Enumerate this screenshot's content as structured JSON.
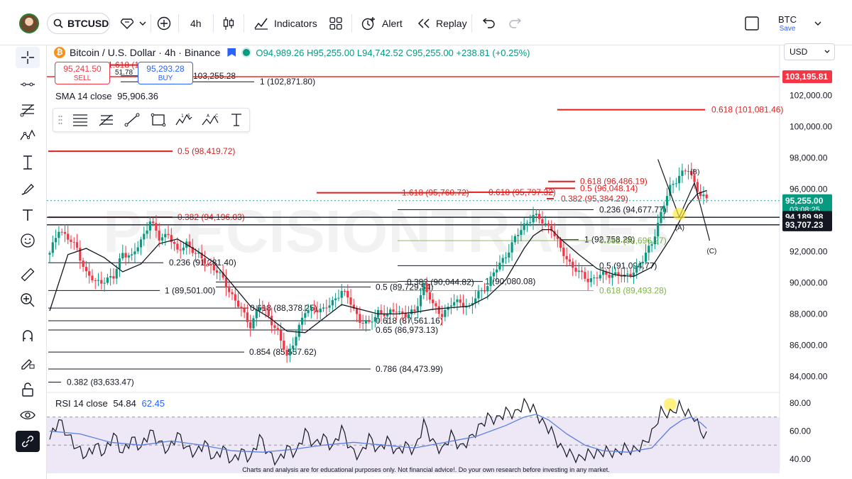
{
  "header": {
    "symbol": "BTCUSD",
    "interval": "4h",
    "indicators_label": "Indicators",
    "alert_label": "Alert",
    "replay_label": "Replay",
    "layout_name": "BTC",
    "save_label": "Save"
  },
  "legend": {
    "title": "Bitcoin / U.S. Dollar · 4h · Binance",
    "open": "O94,989.26",
    "high": "H95,255.00",
    "low": "L94,742.52",
    "close": "C95,255.00",
    "change": "+238.81 (+0.25%)"
  },
  "trade": {
    "sell_price": "95,241.50",
    "sell_label": "SELL",
    "spread": "51.78",
    "buy_price": "95,293.28",
    "buy_label": "BUY"
  },
  "sma_label": "SMA 14 close",
  "sma_value": "95,906.36",
  "rsi_label": "RSI 14 close",
  "rsi_value": "54.84",
  "rsi_ma_value": "62.45",
  "currency": "USD",
  "disclaimer": "Charts and analysis are for educational purposes only. Not financial advice!. Do your own research before investing in any market.",
  "watermark": "PRECISIONTRADE3",
  "colors": {
    "up": "#089981",
    "down": "#f23645",
    "red_level": "#e01e1e",
    "green_level": "#8bc34a",
    "sma": "#131722",
    "rsi": "#131722",
    "rsi_ma": "#5b7fe0",
    "rsi_band": "#ede7f6",
    "accent": "#2962ff"
  },
  "chart_data": {
    "type": "candlestick",
    "title": "Bitcoin / U.S. Dollar · 4h · Binance",
    "price_axis": {
      "ylim": [
        83200,
        104200
      ],
      "ticks": [
        "102,000.00",
        "100,000.00",
        "98,000.00",
        "96,000.00",
        "94,000.00",
        "92,000.00",
        "90,000.00",
        "88,000.00",
        "86,000.00",
        "84,000.00"
      ],
      "tick_values": [
        102000,
        100000,
        98000,
        96000,
        94000,
        92000,
        90000,
        88000,
        86000,
        84000
      ]
    },
    "price_labels": [
      {
        "text": "103,195.81",
        "value": 103195.81,
        "style": "red"
      },
      {
        "text": "95,255.00",
        "sub": "03:08:25",
        "value": 95255,
        "style": "green"
      },
      {
        "text": "94,189.98",
        "value": 94189.98,
        "style": "black"
      },
      {
        "text": "93,707.23",
        "value": 93707.23,
        "style": "black"
      }
    ],
    "red_levels": [
      {
        "label": "0.5 (98,419.72)",
        "value": 98419.72
      },
      {
        "label": "0.382 (94,196.03)",
        "value": 94196.03
      },
      {
        "label": "0.618 (101,081.46)",
        "value": 101081.46
      },
      {
        "label": "1.618 (95,760.72)",
        "value": 95760.72
      },
      {
        "label": "0.618 (95,797.32)",
        "value": 95797.32
      },
      {
        "label": "0.618 (96,486.19)",
        "value": 96486.19
      },
      {
        "label": "0.5 (96,048.14)",
        "value": 96048.14
      },
      {
        "label": "0.382 (95,384.29)",
        "value": 95384.29
      },
      {
        "label": "1.618 (103,946.81)",
        "value": 103946.81
      }
    ],
    "black_levels": [
      {
        "label": "1 (102,871.80)",
        "value": 102871.8
      },
      {
        "label": "103,255.28",
        "value": 103255.28
      },
      {
        "label": "0.236 (91,281.40)",
        "value": 91281.4
      },
      {
        "label": "1 (89,501.00)",
        "value": 89501
      },
      {
        "label": "0.5 (89,729.54)",
        "value": 89729.54
      },
      {
        "label": "0.382 (90,044.82)",
        "value": 90044.82
      },
      {
        "label": "1 (90,080.08)",
        "value": 90080.08
      },
      {
        "label": "0.618 (88,378.25)",
        "value": 88378.25
      },
      {
        "label": "0.618 (87,561.16)",
        "value": 87561.16
      },
      {
        "label": "0.65 (86,973.13)",
        "value": 86973.13
      },
      {
        "label": "0.854 (85,557.62)",
        "value": 85557.62
      },
      {
        "label": "0.786 (84,473.99)",
        "value": 84473.99
      },
      {
        "label": "0.382 (83,633.47)",
        "value": 83633.47
      },
      {
        "label": "0.236 (94,677.77)",
        "value": 94677.77
      },
      {
        "label": "0.5 (91,094.77)",
        "value": 91094.77
      },
      {
        "label": "1 (92,758.29)",
        "value": 92758.29
      }
    ],
    "green_levels": [
      {
        "label": "0.382 (92,696.27)",
        "value": 92696.27
      },
      {
        "label": "0.618 (89,493.28)",
        "value": 89493.28
      }
    ],
    "wave_labels": [
      "(A)",
      "(B)",
      "(C)"
    ],
    "close_path": [
      [
        0,
        91800
      ],
      [
        3,
        93500
      ],
      [
        6,
        92800
      ],
      [
        9,
        92200
      ],
      [
        12,
        90600
      ],
      [
        15,
        90000
      ],
      [
        18,
        90200
      ],
      [
        21,
        90300
      ],
      [
        24,
        92000
      ],
      [
        27,
        91600
      ],
      [
        30,
        92700
      ],
      [
        33,
        94000
      ],
      [
        36,
        92800
      ],
      [
        39,
        93200
      ],
      [
        42,
        91900
      ],
      [
        45,
        92600
      ],
      [
        48,
        91800
      ],
      [
        51,
        91400
      ],
      [
        54,
        90900
      ],
      [
        57,
        90200
      ],
      [
        60,
        89200
      ],
      [
        63,
        88200
      ],
      [
        66,
        87300
      ],
      [
        69,
        88500
      ],
      [
        72,
        87900
      ],
      [
        75,
        86800
      ],
      [
        78,
        85200
      ],
      [
        81,
        86700
      ],
      [
        84,
        88100
      ],
      [
        87,
        88400
      ],
      [
        90,
        88200
      ],
      [
        93,
        88800
      ],
      [
        96,
        89500
      ],
      [
        99,
        88700
      ],
      [
        102,
        87600
      ],
      [
        105,
        87300
      ],
      [
        108,
        88200
      ],
      [
        111,
        87900
      ],
      [
        114,
        88300
      ],
      [
        117,
        87900
      ],
      [
        120,
        88100
      ],
      [
        123,
        89900
      ],
      [
        126,
        88500
      ],
      [
        129,
        88000
      ],
      [
        132,
        88600
      ],
      [
        135,
        88800
      ],
      [
        138,
        88400
      ],
      [
        141,
        89300
      ],
      [
        144,
        89900
      ],
      [
        147,
        90900
      ],
      [
        150,
        91800
      ],
      [
        153,
        92800
      ],
      [
        156,
        93700
      ],
      [
        159,
        94300
      ],
      [
        162,
        93900
      ],
      [
        165,
        93500
      ],
      [
        168,
        92100
      ],
      [
        171,
        91300
      ],
      [
        174,
        90600
      ],
      [
        177,
        90200
      ],
      [
        180,
        90400
      ],
      [
        183,
        90500
      ],
      [
        186,
        90600
      ],
      [
        189,
        90300
      ],
      [
        192,
        90800
      ],
      [
        195,
        91400
      ],
      [
        198,
        92600
      ],
      [
        201,
        94400
      ],
      [
        204,
        96100
      ],
      [
        207,
        96900
      ],
      [
        210,
        97200
      ],
      [
        212,
        96400
      ],
      [
        214,
        95700
      ],
      [
        216,
        95255
      ]
    ],
    "sma14_path": [
      [
        0,
        88200
      ],
      [
        6,
        91800
      ],
      [
        12,
        92200
      ],
      [
        18,
        91600
      ],
      [
        24,
        90700
      ],
      [
        30,
        91200
      ],
      [
        36,
        92500
      ],
      [
        42,
        92800
      ],
      [
        48,
        92100
      ],
      [
        54,
        91300
      ],
      [
        60,
        89900
      ],
      [
        66,
        88500
      ],
      [
        72,
        87800
      ],
      [
        78,
        86900
      ],
      [
        84,
        86800
      ],
      [
        90,
        87700
      ],
      [
        96,
        88600
      ],
      [
        102,
        88300
      ],
      [
        108,
        88000
      ],
      [
        114,
        88000
      ],
      [
        120,
        88100
      ],
      [
        126,
        88300
      ],
      [
        132,
        88400
      ],
      [
        138,
        88500
      ],
      [
        144,
        89100
      ],
      [
        150,
        90200
      ],
      [
        156,
        92200
      ],
      [
        159,
        93000
      ],
      [
        162,
        93400
      ],
      [
        165,
        93400
      ],
      [
        168,
        92800
      ],
      [
        174,
        91800
      ],
      [
        180,
        90900
      ],
      [
        186,
        90500
      ],
      [
        192,
        90400
      ],
      [
        198,
        91000
      ],
      [
        204,
        92800
      ],
      [
        210,
        95000
      ],
      [
        213,
        95700
      ],
      [
        216,
        95906
      ]
    ],
    "wave_path": [
      [
        200,
        97900
      ],
      [
        207,
        94200
      ],
      [
        212,
        96400
      ],
      [
        217,
        92700
      ]
    ],
    "rsi_axis": {
      "ylim": [
        36,
        84
      ],
      "ticks": [
        "80.00",
        "60.00",
        "40.00"
      ],
      "tick_values": [
        80,
        60,
        40
      ],
      "band": [
        30,
        70
      ]
    },
    "rsi_path": [
      [
        0,
        54
      ],
      [
        3,
        68
      ],
      [
        6,
        57
      ],
      [
        9,
        48
      ],
      [
        12,
        42
      ],
      [
        15,
        50
      ],
      [
        18,
        44
      ],
      [
        21,
        58
      ],
      [
        24,
        44
      ],
      [
        27,
        55
      ],
      [
        30,
        48
      ],
      [
        33,
        60
      ],
      [
        36,
        52
      ],
      [
        39,
        46
      ],
      [
        42,
        58
      ],
      [
        45,
        48
      ],
      [
        48,
        44
      ],
      [
        51,
        52
      ],
      [
        54,
        40
      ],
      [
        57,
        48
      ],
      [
        60,
        38
      ],
      [
        63,
        46
      ],
      [
        66,
        40
      ],
      [
        69,
        56
      ],
      [
        72,
        44
      ],
      [
        75,
        38
      ],
      [
        78,
        48
      ],
      [
        81,
        44
      ],
      [
        84,
        60
      ],
      [
        87,
        50
      ],
      [
        90,
        56
      ],
      [
        93,
        48
      ],
      [
        96,
        62
      ],
      [
        99,
        47
      ],
      [
        102,
        42
      ],
      [
        105,
        56
      ],
      [
        108,
        46
      ],
      [
        111,
        54
      ],
      [
        114,
        45
      ],
      [
        117,
        50
      ],
      [
        120,
        46
      ],
      [
        123,
        66
      ],
      [
        126,
        52
      ],
      [
        129,
        46
      ],
      [
        132,
        58
      ],
      [
        135,
        48
      ],
      [
        138,
        54
      ],
      [
        141,
        62
      ],
      [
        144,
        70
      ],
      [
        147,
        68
      ],
      [
        150,
        74
      ],
      [
        153,
        72
      ],
      [
        156,
        80
      ],
      [
        159,
        76
      ],
      [
        162,
        66
      ],
      [
        165,
        60
      ],
      [
        168,
        48
      ],
      [
        171,
        44
      ],
      [
        174,
        40
      ],
      [
        177,
        44
      ],
      [
        180,
        44
      ],
      [
        183,
        46
      ],
      [
        186,
        44
      ],
      [
        189,
        48
      ],
      [
        192,
        46
      ],
      [
        195,
        50
      ],
      [
        198,
        58
      ],
      [
        201,
        74
      ],
      [
        204,
        72
      ],
      [
        207,
        78
      ],
      [
        210,
        72
      ],
      [
        212,
        70
      ],
      [
        214,
        60
      ],
      [
        216,
        56
      ]
    ],
    "rsi_ma_path": [
      [
        0,
        60
      ],
      [
        10,
        58
      ],
      [
        20,
        52
      ],
      [
        30,
        50
      ],
      [
        40,
        53
      ],
      [
        50,
        50
      ],
      [
        60,
        46
      ],
      [
        70,
        45
      ],
      [
        80,
        47
      ],
      [
        90,
        50
      ],
      [
        100,
        52
      ],
      [
        110,
        50
      ],
      [
        120,
        48
      ],
      [
        130,
        52
      ],
      [
        140,
        56
      ],
      [
        150,
        64
      ],
      [
        156,
        70
      ],
      [
        160,
        72
      ],
      [
        164,
        68
      ],
      [
        170,
        58
      ],
      [
        176,
        50
      ],
      [
        182,
        46
      ],
      [
        190,
        45
      ],
      [
        198,
        48
      ],
      [
        204,
        62
      ],
      [
        208,
        68
      ],
      [
        211,
        70
      ],
      [
        214,
        66
      ],
      [
        216,
        62
      ]
    ],
    "highlights": [
      {
        "pane": "price",
        "x": 207,
        "y": 94400
      },
      {
        "pane": "rsi",
        "x": 204,
        "y": 79
      },
      {
        "pane": "rsi",
        "x": 214,
        "y": 62
      }
    ]
  }
}
